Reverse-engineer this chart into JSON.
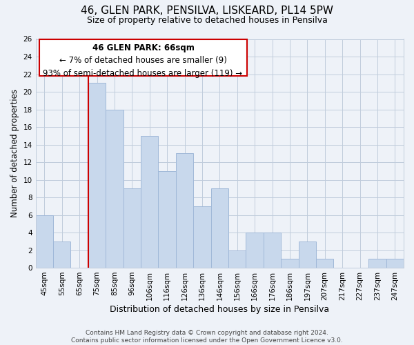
{
  "title": "46, GLEN PARK, PENSILVA, LISKEARD, PL14 5PW",
  "subtitle": "Size of property relative to detached houses in Pensilva",
  "xlabel": "Distribution of detached houses by size in Pensilva",
  "ylabel": "Number of detached properties",
  "bar_color": "#c8d8ec",
  "bar_edge_color": "#a0b8d8",
  "marker_color": "#cc0000",
  "background_color": "#eef2f8",
  "plot_bg_color": "#eef2f8",
  "grid_color": "#c0ccdc",
  "categories": [
    "45sqm",
    "55sqm",
    "65sqm",
    "75sqm",
    "85sqm",
    "96sqm",
    "106sqm",
    "116sqm",
    "126sqm",
    "136sqm",
    "146sqm",
    "156sqm",
    "166sqm",
    "176sqm",
    "186sqm",
    "197sqm",
    "207sqm",
    "217sqm",
    "227sqm",
    "237sqm",
    "247sqm"
  ],
  "values": [
    6,
    3,
    0,
    21,
    18,
    9,
    15,
    11,
    13,
    7,
    9,
    2,
    4,
    4,
    1,
    3,
    1,
    0,
    0,
    1,
    1
  ],
  "marker_index": 2,
  "ylim": [
    0,
    26
  ],
  "yticks": [
    0,
    2,
    4,
    6,
    8,
    10,
    12,
    14,
    16,
    18,
    20,
    22,
    24,
    26
  ],
  "annotation_title": "46 GLEN PARK: 66sqm",
  "annotation_line1": "← 7% of detached houses are smaller (9)",
  "annotation_line2": "93% of semi-detached houses are larger (119) →",
  "footer_line1": "Contains HM Land Registry data © Crown copyright and database right 2024.",
  "footer_line2": "Contains public sector information licensed under the Open Government Licence v3.0.",
  "title_fontsize": 11,
  "subtitle_fontsize": 9,
  "annotation_fontsize": 8.5,
  "tick_fontsize": 7.5,
  "ylabel_fontsize": 8.5,
  "xlabel_fontsize": 9,
  "footer_fontsize": 6.5
}
